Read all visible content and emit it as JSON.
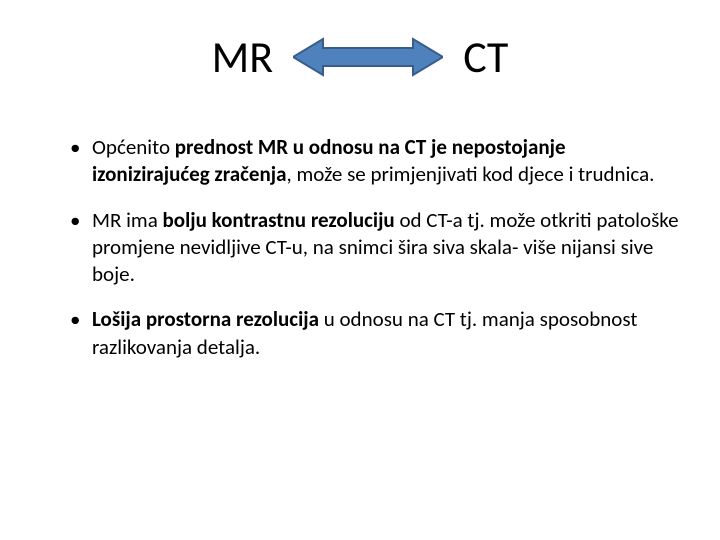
{
  "title": {
    "left": "MR",
    "right": "CT"
  },
  "arrow": {
    "fill": "#4f81bd",
    "stroke": "#385d8a",
    "stroke_width": 2,
    "width": 150,
    "height": 42
  },
  "bullets": [
    {
      "pre": "Općenito ",
      "bold": "prednost MR u odnosu na CT je nepostojanje izonizirajućeg zračenja",
      "post": ", može se primjenjivati kod djece i trudnica."
    },
    {
      "pre": "MR ima ",
      "bold": "bolju kontrastnu rezoluciju",
      "post": " od CT-a tj.  može otkriti patološke promjene nevidljive CT-u, na snimci šira siva skala- više nijansi sive boje."
    },
    {
      "pre": "",
      "bold": "Lošija prostorna rezolucija",
      "post": " u odnosu na CT tj. manja sposobnost razlikovanja detalja."
    }
  ],
  "colors": {
    "background": "#ffffff",
    "text": "#000000"
  },
  "typography": {
    "title_fontsize": 44,
    "body_fontsize": 21,
    "font_family": "Calibri"
  }
}
